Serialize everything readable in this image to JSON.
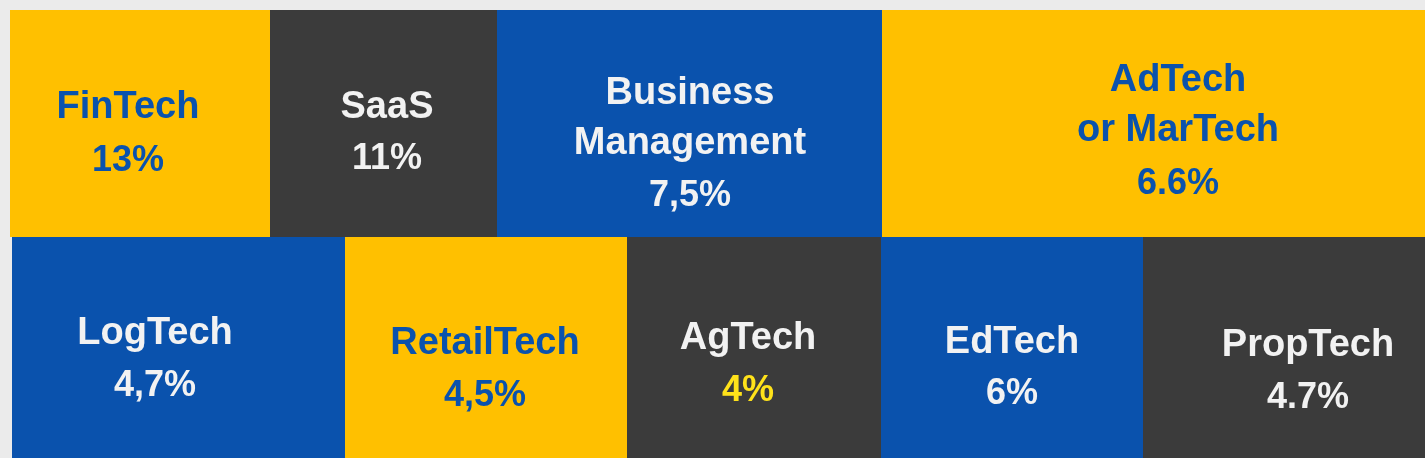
{
  "chart_data": {
    "type": "other",
    "categories": [
      "FinTech",
      "SaaS",
      "Business Management",
      "AdTech or MarTech",
      "LogTech",
      "RetailTech",
      "AgTech",
      "EdTech",
      "PropTech"
    ],
    "values": [
      13,
      11,
      7.5,
      6.6,
      4.7,
      4.5,
      4,
      6,
      4.7
    ],
    "value_labels": [
      "13%",
      "11%",
      "7,5%",
      "6.6%",
      "4,7%",
      "4,5%",
      "4%",
      "6%",
      "4.7%"
    ],
    "colors": [
      "#ffc000",
      "#3b3b3b",
      "#0a52ad",
      "#ffc000",
      "#0a52ad",
      "#ffc000",
      "#3b3b3b",
      "#0a52ad",
      "#3b3b3b"
    ]
  }
}
